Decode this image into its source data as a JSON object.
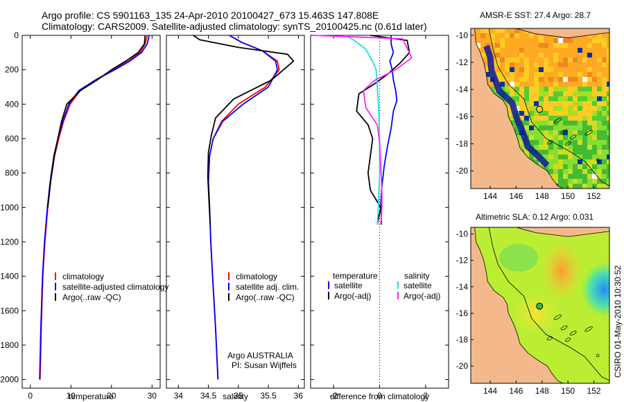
{
  "header": {
    "line1": "Argo profile: CS 5901163_135 24-Apr-2010 20100427_673 15.463S 147.808E",
    "line2": "Climatology: CARS2009. Satellite-adjusted climatology: synTS_20100425.nc (0.61d later)"
  },
  "footer_label": "CSIRO 01-May-2010 10:30:52",
  "colors": {
    "climatology": "#ff0000",
    "satellite": "#0000ff",
    "argo": "#000000",
    "sal_satellite": "#22dddd",
    "sal_argo": "#ff22ff",
    "land": "#f4b98a"
  },
  "chart_data": [
    {
      "id": "temperature-profile",
      "type": "line",
      "xlabel": "temperature",
      "ylabel": "",
      "xlim": [
        -2,
        32
      ],
      "ylim": [
        2050,
        0
      ],
      "xticks": [
        "0",
        "10",
        "20",
        "30"
      ],
      "yticks": [
        "0",
        "200",
        "400",
        "600",
        "800",
        "1000",
        "1200",
        "1400",
        "1600",
        "1800",
        "2000"
      ],
      "legend": [
        "climatology",
        "satellite-adjusted climatology",
        "Argo(..raw -QC)"
      ],
      "series": [
        {
          "name": "climatology",
          "color": "#ff0000",
          "x": [
            28.8,
            28.3,
            27.0,
            24.2,
            20.5,
            16.0,
            12.3,
            9.8,
            8.2,
            7.0,
            6.0,
            5.0,
            4.3,
            3.6,
            3.1,
            2.7,
            2.4
          ],
          "y": [
            0,
            50,
            100,
            150,
            200,
            260,
            320,
            400,
            500,
            600,
            700,
            850,
            1000,
            1200,
            1400,
            1700,
            2000
          ]
        },
        {
          "name": "satellite-adjusted climatology",
          "color": "#0000ff",
          "x": [
            29.3,
            28.8,
            27.4,
            24.5,
            20.8,
            16.0,
            12.0,
            9.5,
            8.0,
            6.8,
            5.8,
            4.9,
            4.2,
            3.5,
            3.0,
            2.6,
            2.3
          ],
          "y": [
            0,
            50,
            100,
            150,
            200,
            260,
            320,
            400,
            500,
            600,
            700,
            850,
            1000,
            1200,
            1400,
            1700,
            2000
          ]
        },
        {
          "name": "Argo(..raw -QC)",
          "color": "#000000",
          "x": [
            28.3,
            28.1,
            26.6,
            23.5,
            20.0,
            16.4,
            12.4,
            9.0,
            7.7,
            6.8,
            5.9,
            5.0,
            4.3
          ],
          "y": [
            0,
            50,
            100,
            150,
            200,
            260,
            320,
            400,
            500,
            600,
            700,
            850,
            1000
          ]
        }
      ]
    },
    {
      "id": "salinity-profile",
      "type": "line",
      "xlabel": "salinity",
      "xlim": [
        33.8,
        36.1
      ],
      "ylim": [
        2050,
        0
      ],
      "xticks": [
        "34",
        "34.5",
        "35",
        "35.5",
        "36"
      ],
      "legend": [
        "climatology",
        "satellite adj. clim.",
        "Argo(..raw -QC)"
      ],
      "annotation": [
        "Argo AUSTRALIA",
        "PI: Susan Wijffels"
      ],
      "series": [
        {
          "name": "climatology",
          "color": "#ff0000",
          "x": [
            34.85,
            35.05,
            35.4,
            35.65,
            35.68,
            35.45,
            35.0,
            34.72,
            34.58,
            34.52,
            34.5,
            34.52,
            34.54,
            34.57,
            34.62,
            34.66
          ],
          "y": [
            0,
            40,
            90,
            150,
            200,
            300,
            400,
            500,
            600,
            700,
            850,
            1000,
            1200,
            1400,
            1700,
            2000
          ]
        },
        {
          "name": "satellite adj. clim.",
          "color": "#0000ff",
          "x": [
            34.85,
            35.05,
            35.4,
            35.62,
            35.65,
            35.5,
            35.08,
            34.74,
            34.58,
            34.52,
            34.5,
            34.52,
            34.54,
            34.57,
            34.62,
            34.66
          ],
          "y": [
            0,
            40,
            90,
            150,
            200,
            300,
            400,
            500,
            600,
            700,
            850,
            1000,
            1200,
            1400,
            1700,
            2000
          ]
        },
        {
          "name": "Argo(..raw -QC)",
          "color": "#000000",
          "x": [
            34.25,
            34.35,
            35.0,
            35.82,
            35.92,
            35.55,
            34.92,
            34.62,
            34.55,
            34.5,
            34.49,
            34.51,
            34.53
          ],
          "y": [
            0,
            25,
            70,
            110,
            150,
            260,
            370,
            480,
            580,
            680,
            820,
            960,
            1100
          ]
        }
      ]
    },
    {
      "id": "difference-profile",
      "type": "line",
      "xlabel": "difference from climatology",
      "xlim": [
        -3,
        3
      ],
      "ylim": [
        2050,
        0
      ],
      "xticks": [
        "-2",
        "0",
        "2"
      ],
      "legend_temperature_header": "temperature",
      "legend_salinity_header": "salinity",
      "legend_temperature": [
        "satellite",
        "Argo(-adj)"
      ],
      "legend_salinity": [
        "satellite",
        "Argo(-adj)"
      ],
      "series": [
        {
          "name": "temperature satellite",
          "color": "#0000ff",
          "x": [
            0.5,
            0.5,
            0.6,
            0.45,
            0.55,
            0.6,
            0.7,
            0.75,
            0.6,
            0.5,
            0.35,
            0.2,
            0.1,
            0.05,
            0.08
          ],
          "y": [
            0,
            50,
            100,
            150,
            200,
            260,
            320,
            380,
            440,
            540,
            640,
            760,
            880,
            980,
            1100
          ]
        },
        {
          "name": "temperature Argo(-adj)",
          "color": "#000000",
          "x": [
            -0.4,
            1.2,
            1.3,
            0.9,
            0.4,
            -0.2,
            -0.9,
            -1.0,
            -0.5,
            -0.3,
            -0.4,
            -0.5,
            -0.4,
            0.05,
            -0.1
          ],
          "y": [
            0,
            30,
            100,
            160,
            220,
            280,
            340,
            440,
            520,
            600,
            700,
            800,
            900,
            1000,
            1100
          ]
        },
        {
          "name": "salinity satellite",
          "color": "#22dddd",
          "x": [
            -1.5,
            -1.1,
            -0.6,
            -0.35,
            -0.15,
            -0.1,
            -0.05,
            -0.02,
            0.0,
            0.0,
            -0.05,
            -0.1
          ],
          "y": [
            0,
            30,
            80,
            140,
            200,
            300,
            400,
            500,
            600,
            800,
            1000,
            1100
          ]
        },
        {
          "name": "salinity Argo(-adj)",
          "color": "#ff22ff",
          "x": [
            -2.9,
            1.0,
            1.4,
            0.7,
            -0.2,
            -0.7,
            -0.6,
            -0.1,
            0.0,
            0.05,
            0.1,
            0.1,
            0.05
          ],
          "y": [
            0,
            20,
            130,
            200,
            260,
            320,
            420,
            520,
            620,
            760,
            900,
            1000,
            1100
          ]
        }
      ]
    },
    {
      "id": "sst-map",
      "type": "heatmap",
      "title": "AMSR-E SST: 27.4 Argo: 28.7",
      "xticks": [
        "144",
        "146",
        "148",
        "150",
        "152"
      ],
      "yticks": [
        "-10",
        "-12",
        "-14",
        "-16",
        "-18",
        "-20"
      ],
      "xlim": [
        142.5,
        153.2
      ],
      "ylim": [
        -21.3,
        -9.5
      ],
      "argo_point": [
        147.808,
        -15.463
      ]
    },
    {
      "id": "sla-map",
      "type": "heatmap",
      "title": "Altimetric SLA: 0.12 Argo: 0.031",
      "xticks": [
        "144",
        "146",
        "148",
        "150",
        "152"
      ],
      "yticks": [
        "-10",
        "-12",
        "-14",
        "-16",
        "-18",
        "-20"
      ],
      "xlim": [
        142.5,
        153.2
      ],
      "ylim": [
        -21.3,
        -9.5
      ],
      "argo_point": [
        147.808,
        -15.463
      ]
    }
  ]
}
